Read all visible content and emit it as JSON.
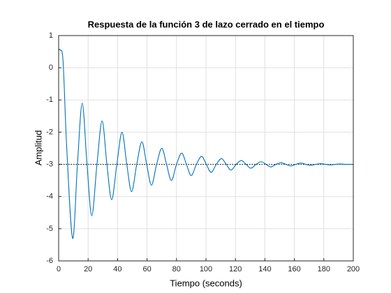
{
  "chart_data": {
    "type": "line",
    "title": "Respuesta de la función 3 de lazo cerrado en el tiempo",
    "xlabel": "Tiempo (seconds)",
    "ylabel": "Amplitud",
    "x": [
      0,
      1,
      3,
      5.5,
      9.5,
      12.75,
      16,
      19.25,
      22.5,
      26,
      29.5,
      32.75,
      36,
      39.5,
      43,
      46.25,
      49.5,
      53,
      56.5,
      59.75,
      63,
      66.5,
      70,
      73.25,
      76.5,
      80,
      83.5,
      86.75,
      90,
      93.5,
      97,
      100.25,
      103.5,
      107,
      110.5,
      113.75,
      117,
      120.5,
      124,
      127.25,
      130.5,
      134,
      137.5,
      140.75,
      144,
      147.5,
      151,
      154.25,
      157.5,
      161,
      164.5,
      167.75,
      171,
      174.5,
      178,
      181.25,
      184.5,
      188,
      191.5,
      195,
      200
    ],
    "values": [
      0.55,
      0.55,
      0.2,
      -2.5,
      -5.3,
      -3,
      -1.1,
      -3,
      -4.6,
      -3,
      -1.65,
      -3,
      -4.1,
      -3,
      -2.0,
      -3,
      -3.85,
      -3,
      -2.3,
      -3,
      -3.65,
      -3,
      -2.5,
      -3,
      -3.5,
      -3,
      -2.65,
      -3,
      -3.35,
      -3,
      -2.75,
      -3,
      -3.25,
      -3,
      -2.82,
      -3,
      -3.18,
      -3,
      -2.88,
      -3,
      -3.12,
      -3,
      -2.92,
      -3,
      -3.08,
      -3,
      -2.95,
      -3,
      -3.05,
      -3,
      -2.96,
      -3,
      -3.03,
      -3,
      -2.98,
      -3,
      -3.02,
      -3,
      -2.99,
      -3,
      -3
    ],
    "color": "#0072bd",
    "steady_state": -3,
    "xlim": [
      0,
      200
    ],
    "xticks": [
      0,
      20,
      40,
      60,
      80,
      100,
      120,
      140,
      160,
      180,
      200
    ],
    "ylim": [
      -6,
      1
    ],
    "yticks": [
      -6,
      -5,
      -4,
      -3,
      -2,
      -1,
      0,
      1
    ],
    "grid": true
  }
}
